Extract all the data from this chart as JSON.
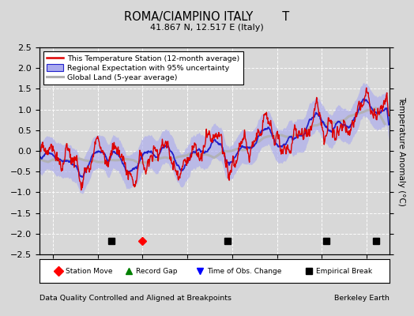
{
  "title": "ROMA/CIAMPINO ITALY        T",
  "subtitle": "41.867 N, 12.517 E (Italy)",
  "ylabel": "Temperature Anomaly (°C)",
  "xlabel_left": "Data Quality Controlled and Aligned at Breakpoints",
  "xlabel_right": "Berkeley Earth",
  "ylim": [
    -2.5,
    2.5
  ],
  "xlim": [
    1937,
    2015
  ],
  "yticks": [
    -2.5,
    -2,
    -1.5,
    -1,
    -0.5,
    0,
    0.5,
    1,
    1.5,
    2,
    2.5
  ],
  "xticks": [
    1940,
    1950,
    1960,
    1970,
    1980,
    1990,
    2000,
    2010
  ],
  "station_move_years": [
    1960
  ],
  "record_gap_years": [],
  "obs_change_years": [],
  "empirical_break_years": [
    1953,
    1979,
    2001,
    2012
  ],
  "bg_color": "#d8d8d8",
  "plot_bg_color": "#d8d8d8",
  "red_color": "#dd0000",
  "blue_color": "#2222cc",
  "blue_band_color": "#aaaaee",
  "gray_color": "#b0b0b0",
  "legend_box_color": "#ffffff"
}
